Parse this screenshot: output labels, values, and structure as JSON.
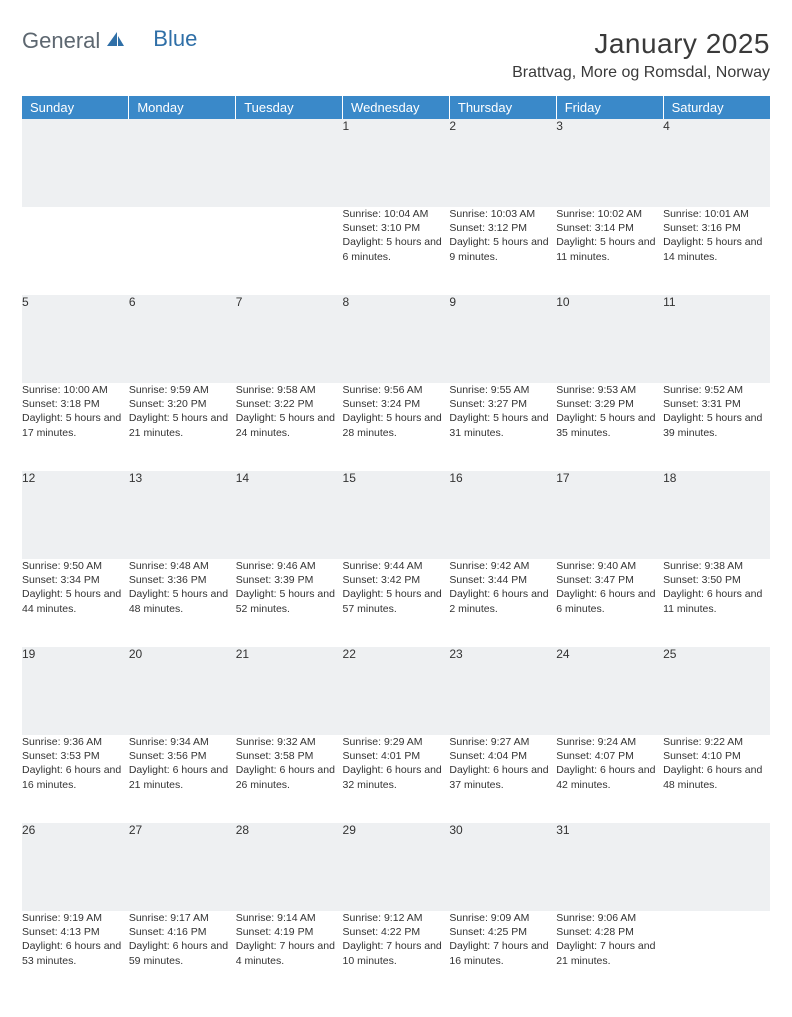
{
  "logo": {
    "left": "General",
    "right": "Blue"
  },
  "title": "January 2025",
  "location": "Brattvag, More og Romsdal, Norway",
  "colors": {
    "header_bg": "#3a89c9",
    "header_text": "#ffffff",
    "daynum_bg": "#eef0f2",
    "row_border": "#355e8c",
    "text": "#333333",
    "logo_gray": "#5d6770",
    "logo_blue": "#2f6fa7",
    "page_bg": "#ffffff"
  },
  "weekdays": [
    "Sunday",
    "Monday",
    "Tuesday",
    "Wednesday",
    "Thursday",
    "Friday",
    "Saturday"
  ],
  "weeks": [
    {
      "nums": [
        "",
        "",
        "",
        "1",
        "2",
        "3",
        "4"
      ],
      "cells": [
        "",
        "",
        "",
        "Sunrise: 10:04 AM\nSunset: 3:10 PM\nDaylight: 5 hours and 6 minutes.",
        "Sunrise: 10:03 AM\nSunset: 3:12 PM\nDaylight: 5 hours and 9 minutes.",
        "Sunrise: 10:02 AM\nSunset: 3:14 PM\nDaylight: 5 hours and 11 minutes.",
        "Sunrise: 10:01 AM\nSunset: 3:16 PM\nDaylight: 5 hours and 14 minutes."
      ]
    },
    {
      "nums": [
        "5",
        "6",
        "7",
        "8",
        "9",
        "10",
        "11"
      ],
      "cells": [
        "Sunrise: 10:00 AM\nSunset: 3:18 PM\nDaylight: 5 hours and 17 minutes.",
        "Sunrise: 9:59 AM\nSunset: 3:20 PM\nDaylight: 5 hours and 21 minutes.",
        "Sunrise: 9:58 AM\nSunset: 3:22 PM\nDaylight: 5 hours and 24 minutes.",
        "Sunrise: 9:56 AM\nSunset: 3:24 PM\nDaylight: 5 hours and 28 minutes.",
        "Sunrise: 9:55 AM\nSunset: 3:27 PM\nDaylight: 5 hours and 31 minutes.",
        "Sunrise: 9:53 AM\nSunset: 3:29 PM\nDaylight: 5 hours and 35 minutes.",
        "Sunrise: 9:52 AM\nSunset: 3:31 PM\nDaylight: 5 hours and 39 minutes."
      ]
    },
    {
      "nums": [
        "12",
        "13",
        "14",
        "15",
        "16",
        "17",
        "18"
      ],
      "cells": [
        "Sunrise: 9:50 AM\nSunset: 3:34 PM\nDaylight: 5 hours and 44 minutes.",
        "Sunrise: 9:48 AM\nSunset: 3:36 PM\nDaylight: 5 hours and 48 minutes.",
        "Sunrise: 9:46 AM\nSunset: 3:39 PM\nDaylight: 5 hours and 52 minutes.",
        "Sunrise: 9:44 AM\nSunset: 3:42 PM\nDaylight: 5 hours and 57 minutes.",
        "Sunrise: 9:42 AM\nSunset: 3:44 PM\nDaylight: 6 hours and 2 minutes.",
        "Sunrise: 9:40 AM\nSunset: 3:47 PM\nDaylight: 6 hours and 6 minutes.",
        "Sunrise: 9:38 AM\nSunset: 3:50 PM\nDaylight: 6 hours and 11 minutes."
      ]
    },
    {
      "nums": [
        "19",
        "20",
        "21",
        "22",
        "23",
        "24",
        "25"
      ],
      "cells": [
        "Sunrise: 9:36 AM\nSunset: 3:53 PM\nDaylight: 6 hours and 16 minutes.",
        "Sunrise: 9:34 AM\nSunset: 3:56 PM\nDaylight: 6 hours and 21 minutes.",
        "Sunrise: 9:32 AM\nSunset: 3:58 PM\nDaylight: 6 hours and 26 minutes.",
        "Sunrise: 9:29 AM\nSunset: 4:01 PM\nDaylight: 6 hours and 32 minutes.",
        "Sunrise: 9:27 AM\nSunset: 4:04 PM\nDaylight: 6 hours and 37 minutes.",
        "Sunrise: 9:24 AM\nSunset: 4:07 PM\nDaylight: 6 hours and 42 minutes.",
        "Sunrise: 9:22 AM\nSunset: 4:10 PM\nDaylight: 6 hours and 48 minutes."
      ]
    },
    {
      "nums": [
        "26",
        "27",
        "28",
        "29",
        "30",
        "31",
        ""
      ],
      "cells": [
        "Sunrise: 9:19 AM\nSunset: 4:13 PM\nDaylight: 6 hours and 53 minutes.",
        "Sunrise: 9:17 AM\nSunset: 4:16 PM\nDaylight: 6 hours and 59 minutes.",
        "Sunrise: 9:14 AM\nSunset: 4:19 PM\nDaylight: 7 hours and 4 minutes.",
        "Sunrise: 9:12 AM\nSunset: 4:22 PM\nDaylight: 7 hours and 10 minutes.",
        "Sunrise: 9:09 AM\nSunset: 4:25 PM\nDaylight: 7 hours and 16 minutes.",
        "Sunrise: 9:06 AM\nSunset: 4:28 PM\nDaylight: 7 hours and 21 minutes.",
        ""
      ]
    }
  ]
}
